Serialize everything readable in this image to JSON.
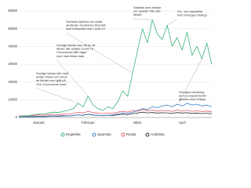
{
  "chart_data": {
    "type": "line",
    "categories": [
      null,
      null,
      null,
      null,
      "Januari",
      null,
      null,
      null,
      null,
      null,
      null,
      null,
      null,
      null,
      "Februari",
      null,
      null,
      null,
      null,
      null,
      null,
      null,
      null,
      null,
      "Mars",
      null,
      null,
      null,
      null,
      null,
      null,
      null,
      null,
      "April",
      null,
      null,
      null,
      null,
      null,
      null
    ],
    "series": [
      {
        "name": "Engelska",
        "color": "#3bb37a",
        "values": [
          500,
          800,
          1000,
          1500,
          2000,
          1800,
          2500,
          3000,
          2800,
          3500,
          4000,
          5000,
          8000,
          6000,
          12000,
          7000,
          5000,
          4000,
          6000,
          5000,
          9000,
          15000,
          12000,
          25000,
          38000,
          50000,
          42000,
          55000,
          47000,
          44000,
          52000,
          40000,
          45000,
          38000,
          48000,
          35000,
          40000,
          33000,
          42000,
          30000
        ]
      },
      {
        "name": "Spanska",
        "color": "#3a7fc4",
        "values": [
          200,
          300,
          300,
          400,
          500,
          400,
          600,
          700,
          600,
          800,
          900,
          1000,
          1500,
          1200,
          2000,
          1500,
          1200,
          1000,
          1300,
          1500,
          2000,
          2500,
          2200,
          3000,
          4000,
          5000,
          4500,
          6000,
          5500,
          6500,
          7000,
          6000,
          7500,
          6500,
          8000,
          7000,
          7500,
          6500,
          7000,
          6000
        ]
      },
      {
        "name": "Ryska",
        "color": "#e05a6a",
        "values": [
          800,
          1000,
          900,
          1200,
          1500,
          1300,
          1600,
          1800,
          1500,
          2000,
          1800,
          2200,
          3000,
          2500,
          3500,
          2800,
          2500,
          2200,
          2600,
          2400,
          3000,
          3500,
          3000,
          4000,
          3500,
          4500,
          3800,
          4200,
          3600,
          4000,
          3800,
          3500,
          4200,
          3700,
          4000,
          3500,
          3800,
          3300,
          3600,
          3200
        ]
      },
      {
        "name": "Arabiska",
        "color": "#2b2b3a",
        "values": [
          300,
          400,
          500,
          600,
          700,
          600,
          800,
          900,
          800,
          1000,
          900,
          1100,
          1500,
          1200,
          1800,
          1400,
          1200,
          1100,
          1300,
          1200,
          1500,
          1800,
          1600,
          2200,
          2500,
          3000,
          2600,
          2800,
          2500,
          2700,
          2600,
          2400,
          2800,
          2500,
          2700,
          2300,
          2500,
          2200,
          2400,
          2100
        ]
      }
    ],
    "ylim": [
      0,
      60000
    ],
    "yticks": [
      0,
      10000,
      20000,
      30000,
      40000,
      50000,
      60000
    ],
    "grid": true,
    "annotations": [
      [
        "Statistik över artiklar",
        "om nyheter från alla",
        "länder"
      ],
      [
        "För- och nackdelar",
        "med Sveriges strategi"
      ],
      [
        "Svenska sjukhus har slutat",
        "använda i medicinen Klorokin",
        "som behandlat mot Covid-19"
      ],
      [
        "Sverige laddar som ett av de",
        "länder där antalet Covid-19",
        "Coronavirus fått högst",
        "över med flesta data"
      ],
      [
        "Sverige laddar inte med",
        "nivåer bland som ett av",
        "de länder som gått på",
        "\"the Coronavirus hoax\""
      ],
      [
        "Sveriges hantering",
        "av Coronapandemin",
        "jämförs med Ohbey"
      ]
    ]
  }
}
